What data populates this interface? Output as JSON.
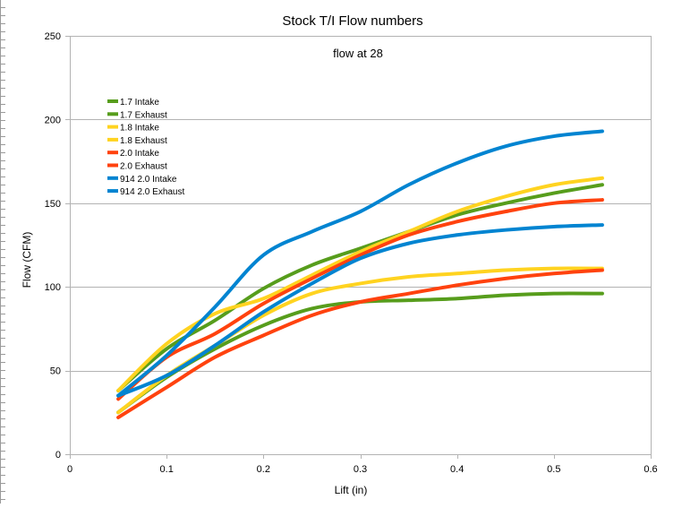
{
  "chart_data": {
    "type": "line",
    "title": "Stock T/I Flow numbers",
    "annotation": "flow at 28",
    "xlabel": "Lift (in)",
    "ylabel": "Flow (CFM)",
    "xlim": [
      0,
      0.6
    ],
    "ylim": [
      0,
      250
    ],
    "xticks": [
      0,
      0.1,
      0.2,
      0.3,
      0.4,
      0.5,
      0.6
    ],
    "xtick_labels": [
      "0",
      "0.1",
      "0.2",
      "0.3",
      "0.4",
      "0.5",
      "0.6"
    ],
    "yticks": [
      0,
      50,
      100,
      150,
      200,
      250
    ],
    "ytick_labels": [
      "0",
      "50",
      "100",
      "150",
      "200",
      "250"
    ],
    "grid": "horizontal",
    "legend_position": "top-left",
    "x": [
      0.05,
      0.1,
      0.15,
      0.2,
      0.25,
      0.3,
      0.35,
      0.4,
      0.45,
      0.5,
      0.55
    ],
    "series": [
      {
        "name": "1.7 Intake",
        "color": "#579d1c",
        "values": [
          38,
          63,
          80,
          99,
          113,
          123,
          133,
          143,
          150,
          156,
          161
        ]
      },
      {
        "name": "1.7 Exhaust",
        "color": "#579d1c",
        "values": [
          25,
          46,
          63,
          77,
          87,
          91,
          92,
          93,
          95,
          96,
          96
        ]
      },
      {
        "name": "1.8 Intake",
        "color": "#ffd320",
        "values": [
          38,
          66,
          84,
          93,
          107,
          121,
          133,
          145,
          154,
          161,
          165
        ]
      },
      {
        "name": "1.8 Exhaust",
        "color": "#ffd320",
        "values": [
          25,
          47,
          65,
          83,
          96,
          102,
          106,
          108,
          110,
          111,
          111
        ]
      },
      {
        "name": "2.0 Intake",
        "color": "#ff420e",
        "values": [
          33,
          58,
          72,
          90,
          105,
          119,
          131,
          139,
          145,
          150,
          152
        ]
      },
      {
        "name": "2.0 Exhaust",
        "color": "#ff420e",
        "values": [
          22,
          40,
          58,
          71,
          83,
          91,
          96,
          101,
          105,
          108,
          110
        ]
      },
      {
        "name": "914 2.0 Intake",
        "color": "#0084d1",
        "values": [
          35,
          59,
          88,
          119,
          133,
          145,
          161,
          174,
          184,
          190,
          193
        ]
      },
      {
        "name": "914 2.0 Exhaust",
        "color": "#0084d1",
        "values": [
          35,
          47,
          65,
          85,
          102,
          117,
          126,
          131,
          134,
          136,
          137
        ]
      }
    ]
  }
}
